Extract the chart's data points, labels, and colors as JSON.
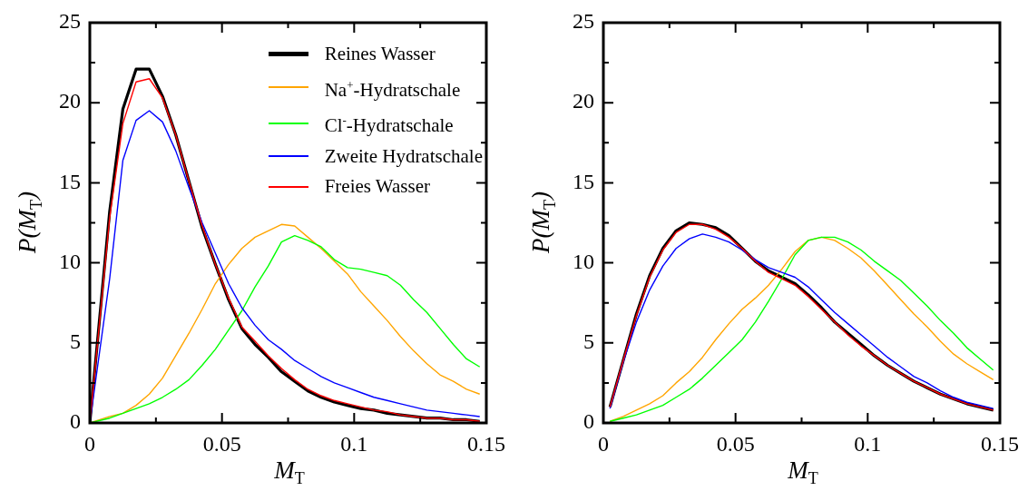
{
  "chart_data": [
    {
      "type": "line",
      "xlabel": "M$_{T}$",
      "ylabel": "P(M$_{T}$)",
      "x": [
        0,
        0.0075,
        0.0125,
        0.0175,
        0.0225,
        0.0275,
        0.0325,
        0.0375,
        0.0425,
        0.0475,
        0.0525,
        0.0575,
        0.0625,
        0.0675,
        0.0725,
        0.0775,
        0.0825,
        0.0875,
        0.0925,
        0.0975,
        0.1025,
        0.1075,
        0.1125,
        0.1175,
        0.1225,
        0.1275,
        0.1325,
        0.1375,
        0.1425,
        0.1475
      ],
      "series": [
        {
          "name": "Reines Wasser",
          "color": "#000000",
          "values": [
            0,
            13.2,
            19.6,
            22.1,
            22.1,
            20.4,
            18.0,
            15.1,
            12.2,
            9.9,
            7.7,
            5.9,
            4.9,
            4.1,
            3.2,
            2.6,
            2.0,
            1.6,
            1.3,
            1.1,
            0.9,
            0.8,
            0.6,
            0.5,
            0.4,
            0.3,
            0.3,
            0.2,
            0.2,
            0.1
          ]
        },
        {
          "name": "Na$^{+}$-Hydratschale",
          "color": "#ffa500",
          "values": [
            0,
            0.4,
            0.6,
            1.1,
            1.8,
            2.8,
            4.2,
            5.6,
            7.1,
            8.7,
            9.9,
            10.9,
            11.6,
            12.0,
            12.4,
            12.3,
            11.6,
            10.9,
            10.1,
            9.3,
            8.2,
            7.3,
            6.4,
            5.4,
            4.5,
            3.7,
            3.0,
            2.6,
            2.1,
            1.8
          ]
        },
        {
          "name": "Cl$^{-}$-Hydratschale",
          "color": "#00ff00",
          "values": [
            0,
            0.3,
            0.6,
            0.9,
            1.2,
            1.6,
            2.1,
            2.7,
            3.6,
            4.6,
            5.8,
            7.0,
            8.5,
            9.8,
            11.3,
            11.7,
            11.4,
            11.0,
            10.2,
            9.7,
            9.6,
            9.4,
            9.2,
            8.6,
            7.7,
            6.9,
            5.9,
            4.9,
            4.0,
            3.5
          ]
        },
        {
          "name": "Zweite Hydratschale",
          "color": "#0000ff",
          "values": [
            0,
            9.0,
            16.4,
            18.9,
            19.5,
            18.8,
            17.0,
            14.7,
            12.5,
            10.6,
            8.7,
            7.2,
            6.1,
            5.2,
            4.6,
            3.9,
            3.4,
            2.9,
            2.5,
            2.2,
            1.9,
            1.6,
            1.4,
            1.2,
            1.0,
            0.8,
            0.7,
            0.6,
            0.5,
            0.4
          ]
        },
        {
          "name": "Freies Wasser",
          "color": "#ff0000",
          "values": [
            0,
            12.8,
            18.7,
            21.3,
            21.5,
            20.3,
            18.0,
            15.1,
            12.3,
            9.9,
            7.8,
            6.0,
            5.1,
            4.2,
            3.4,
            2.7,
            2.1,
            1.7,
            1.4,
            1.2,
            1.0,
            0.8,
            0.7,
            0.5,
            0.4,
            0.3,
            0.3,
            0.2,
            0.2,
            0.1
          ]
        }
      ],
      "xlim": [
        0,
        0.15
      ],
      "ylim": [
        0,
        25
      ],
      "xticks": [
        0,
        {
          "value": 0.025,
          "label": null
        },
        0.05,
        {
          "value": 0.075,
          "label": null
        },
        {
          "value": 0.1,
          "label": "0.1"
        },
        {
          "value": 0.125,
          "label": null
        },
        0.15
      ],
      "yticks": [
        0,
        {
          "value": 2.5,
          "label": null
        },
        5,
        {
          "value": 7.5,
          "label": null
        },
        10,
        {
          "value": 12.5,
          "label": null
        },
        15,
        {
          "value": 17.5,
          "label": null
        },
        20,
        {
          "value": 22.5,
          "label": null
        },
        25
      ],
      "grid": false,
      "legend": "top right",
      "marker": "none",
      "line_style": "solid"
    },
    {
      "type": "line",
      "xlabel": "M$_{T}$",
      "ylabel": "P(M$_{T}$)",
      "x": [
        0.0025,
        0.0075,
        0.0125,
        0.0175,
        0.0225,
        0.0275,
        0.0325,
        0.0375,
        0.0425,
        0.0475,
        0.0525,
        0.0575,
        0.0625,
        0.0675,
        0.0725,
        0.0775,
        0.0825,
        0.0875,
        0.0925,
        0.0975,
        0.1025,
        0.1075,
        0.1125,
        0.1175,
        0.1225,
        0.1275,
        0.1325,
        0.1375,
        0.1425,
        0.1475
      ],
      "series": [
        {
          "color": "#000000",
          "values": [
            1.0,
            3.9,
            6.8,
            9.2,
            10.9,
            12.0,
            12.5,
            12.4,
            12.2,
            11.7,
            10.9,
            10.1,
            9.5,
            9.1,
            8.7,
            8.0,
            7.2,
            6.3,
            5.6,
            4.9,
            4.2,
            3.6,
            3.1,
            2.6,
            2.2,
            1.8,
            1.5,
            1.2,
            1.0,
            0.8
          ]
        },
        {
          "color": "#ffa500",
          "values": [
            0.1,
            0.4,
            0.8,
            1.2,
            1.7,
            2.5,
            3.2,
            4.1,
            5.2,
            6.2,
            7.1,
            7.8,
            8.6,
            9.6,
            10.7,
            11.4,
            11.6,
            11.4,
            10.9,
            10.3,
            9.5,
            8.6,
            7.7,
            6.8,
            6.0,
            5.1,
            4.3,
            3.7,
            3.2,
            2.7
          ]
        },
        {
          "color": "#00ff00",
          "values": [
            0.1,
            0.3,
            0.5,
            0.8,
            1.1,
            1.6,
            2.1,
            2.8,
            3.6,
            4.4,
            5.2,
            6.3,
            7.6,
            9.0,
            10.5,
            11.4,
            11.6,
            11.6,
            11.3,
            10.8,
            10.1,
            9.5,
            8.9,
            8.1,
            7.3,
            6.4,
            5.6,
            4.7,
            4.0,
            3.3
          ]
        },
        {
          "color": "#0000ff",
          "values": [
            0.9,
            3.8,
            6.3,
            8.3,
            9.8,
            10.9,
            11.5,
            11.8,
            11.6,
            11.3,
            10.8,
            10.2,
            9.7,
            9.4,
            9.1,
            8.5,
            7.7,
            6.9,
            6.2,
            5.5,
            4.8,
            4.1,
            3.5,
            2.9,
            2.5,
            2.0,
            1.6,
            1.3,
            1.1,
            0.9
          ]
        },
        {
          "color": "#ff0000",
          "values": [
            1.0,
            3.9,
            6.7,
            9.1,
            10.8,
            11.9,
            12.4,
            12.4,
            12.1,
            11.6,
            10.9,
            10.1,
            9.4,
            9.0,
            8.6,
            7.9,
            7.1,
            6.3,
            5.5,
            4.8,
            4.2,
            3.6,
            3.1,
            2.6,
            2.2,
            1.8,
            1.5,
            1.2,
            1.0,
            0.8
          ]
        }
      ],
      "xlim": [
        0,
        0.15
      ],
      "ylim": [
        0,
        25
      ],
      "xticks": [
        0,
        {
          "value": 0.025,
          "label": null
        },
        0.05,
        {
          "value": 0.075,
          "label": null
        },
        {
          "value": 0.1,
          "label": "0.1"
        },
        {
          "value": 0.125,
          "label": null
        },
        0.15
      ],
      "yticks": [
        0,
        {
          "value": 2.5,
          "label": null
        },
        5,
        {
          "value": 7.5,
          "label": null
        },
        10,
        {
          "value": 12.5,
          "label": null
        },
        15,
        {
          "value": 17.5,
          "label": null
        },
        20,
        {
          "value": 22.5,
          "label": null
        },
        25
      ],
      "grid": false,
      "marker": "none",
      "line_style": "solid"
    }
  ]
}
